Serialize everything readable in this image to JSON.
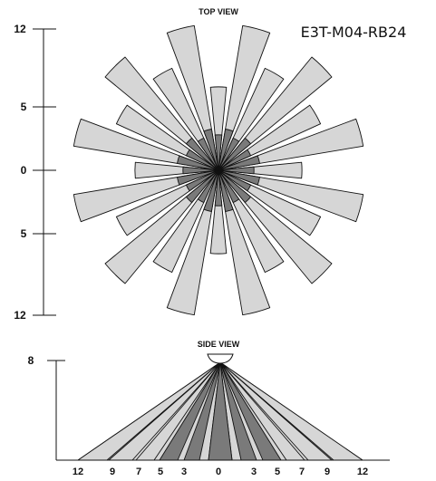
{
  "top_view": {
    "title": "TOP VIEW",
    "model": "E3T-M04-RB24",
    "axis_ticks": [
      "12",
      "5",
      "0",
      "5",
      "12"
    ]
  },
  "side_view": {
    "title": "SIDE VIEW",
    "y_tick": "8",
    "x_ticks": [
      "12",
      "9",
      "7",
      "5",
      "3",
      "0",
      "3",
      "5",
      "7",
      "9",
      "12"
    ]
  },
  "colors": {
    "outer_zone": "#d6d6d6",
    "inner_zone": "#7a7a7a",
    "stroke": "#111111"
  }
}
